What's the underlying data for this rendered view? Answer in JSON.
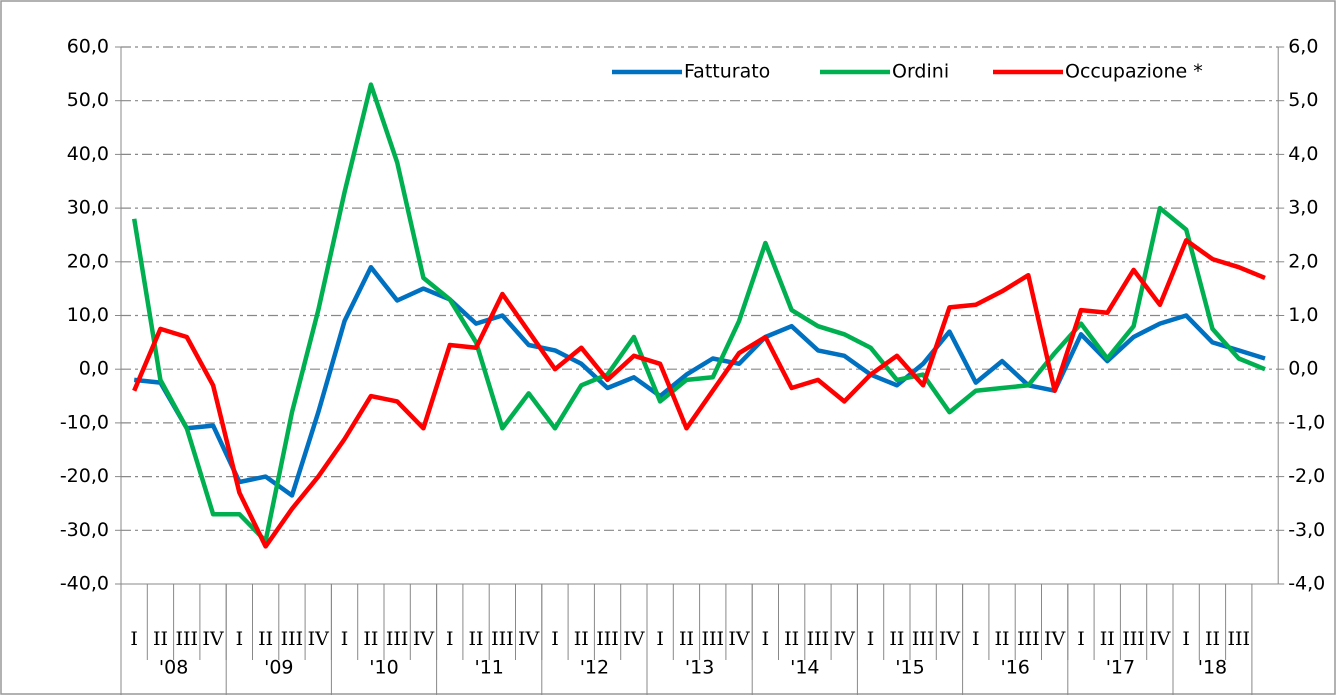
{
  "chart_data": {
    "type": "line",
    "categories": [
      "I",
      "II",
      "III",
      "IV",
      "I",
      "II",
      "III",
      "IV",
      "I",
      "II",
      "III",
      "IV",
      "I",
      "II",
      "III",
      "IV",
      "I",
      "II",
      "III",
      "IV",
      "I",
      "II",
      "III",
      "IV",
      "I",
      "II",
      "III",
      "IV",
      "I",
      "II",
      "III",
      "IV",
      "I",
      "II",
      "III",
      "IV",
      "I",
      "II",
      "III",
      "IV",
      "I",
      "II",
      "III",
      null
    ],
    "groups": [
      "'08",
      "'09",
      "'10",
      "'11",
      "'12",
      "'13",
      "'14",
      "'15",
      "'16",
      "'17",
      "'18"
    ],
    "series": [
      {
        "name": "Fatturato",
        "color": "#0070c0",
        "values": [
          -2,
          -2.5,
          -11,
          -10.5,
          -21,
          -20,
          -23.5,
          -8,
          9,
          19,
          12.8,
          15,
          13,
          8.5,
          10,
          4.5,
          3.5,
          1,
          -3.5,
          -1.5,
          -5,
          -1,
          2,
          1,
          6,
          8,
          3.5,
          2.5,
          -1,
          -3,
          1,
          7,
          -2.5,
          1.5,
          -3,
          -4,
          6.5,
          1.5,
          6,
          8.5,
          10,
          5,
          3.5,
          2
        ]
      },
      {
        "name": "Ordini",
        "color": "#00b050",
        "values": [
          28,
          -2,
          -11,
          -27,
          -27,
          -32,
          -8,
          11,
          33,
          53,
          38.5,
          17,
          13,
          5,
          -11,
          -4.5,
          -11,
          -3,
          -1,
          6,
          -6,
          -2,
          -1.5,
          9,
          23.5,
          11,
          8,
          6.5,
          4,
          -2,
          -1,
          -8,
          -4,
          -3.5,
          -3,
          3,
          8.5,
          2,
          8,
          30,
          26,
          7.5,
          2,
          0
        ]
      },
      {
        "name": "Occupazione *",
        "color": "#ff0000",
        "axis": "y2",
        "values": [
          -0.4,
          0.75,
          0.6,
          -0.3,
          -2.3,
          -3.3,
          -2.6,
          -2.0,
          -1.3,
          -0.5,
          -0.6,
          -1.1,
          0.45,
          0.4,
          1.4,
          0.7,
          0.0,
          0.4,
          -0.2,
          0.25,
          0.1,
          -1.1,
          -0.4,
          0.3,
          0.6,
          -0.35,
          -0.2,
          -0.6,
          -0.1,
          0.25,
          -0.3,
          1.15,
          1.2,
          1.45,
          1.75,
          -0.4,
          1.1,
          1.05,
          1.85,
          1.2,
          2.4,
          2.05,
          1.9,
          1.7
        ]
      }
    ],
    "ylim": [
      -40,
      60
    ],
    "yticks": [
      {
        "value": -40,
        "label": "-40,0"
      },
      {
        "value": -30,
        "label": "-30,0"
      },
      {
        "value": -20,
        "label": "-20,0"
      },
      {
        "value": -10,
        "label": "-10,0"
      },
      {
        "value": 0,
        "label": "0,0"
      },
      {
        "value": 10,
        "label": "10,0"
      },
      {
        "value": 20,
        "label": "20,0"
      },
      {
        "value": 30,
        "label": "30,0"
      },
      {
        "value": 40,
        "label": "40,0"
      },
      {
        "value": 50,
        "label": "50,0"
      },
      {
        "value": 60,
        "label": "60,0"
      }
    ],
    "y2lim": [
      -4,
      6
    ],
    "y2ticks": [
      {
        "value": -4,
        "label": "-4,0"
      },
      {
        "value": -3,
        "label": "-3,0"
      },
      {
        "value": -2,
        "label": "-2,0"
      },
      {
        "value": -1,
        "label": "-1,0"
      },
      {
        "value": 0,
        "label": "0,0"
      },
      {
        "value": 1,
        "label": "1,0"
      },
      {
        "value": 2,
        "label": "2,0"
      },
      {
        "value": 3,
        "label": "3,0"
      },
      {
        "value": 4,
        "label": "4,0"
      },
      {
        "value": 5,
        "label": "5,0"
      },
      {
        "value": 6,
        "label": "6,0"
      }
    ],
    "grid": true,
    "legend": "top-right"
  }
}
